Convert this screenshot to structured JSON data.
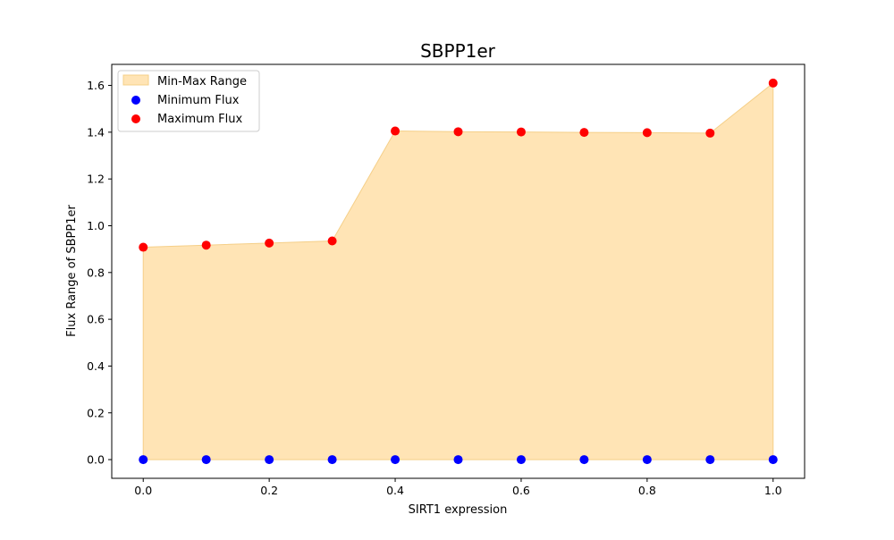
{
  "chart_data": {
    "type": "scatter",
    "title": "SBPP1er",
    "xlabel": "SIRT1 expression",
    "ylabel": "Flux Range of SBPP1er",
    "xlim": [
      -0.05,
      1.05
    ],
    "ylim": [
      -0.08,
      1.69
    ],
    "x_ticks": [
      "0.0",
      "0.2",
      "0.4",
      "0.6",
      "0.8",
      "1.0"
    ],
    "y_ticks": [
      "0.0",
      "0.2",
      "0.4",
      "0.6",
      "0.8",
      "1.0",
      "1.2",
      "1.4",
      "1.6"
    ],
    "x": [
      0.0,
      0.1,
      0.2,
      0.3,
      0.4,
      0.5,
      0.6,
      0.7,
      0.8,
      0.9,
      1.0
    ],
    "fill": {
      "name": "Min-Max Range",
      "color": "#FFE4B5",
      "edge_color": "#F5CF88"
    },
    "series": [
      {
        "name": "Minimum Flux",
        "color": "#0000FF",
        "values": [
          0.0,
          0.0,
          0.0,
          0.0,
          0.0,
          0.0,
          0.0,
          0.0,
          0.0,
          0.0,
          0.0
        ]
      },
      {
        "name": "Maximum Flux",
        "color": "#FF0000",
        "values": [
          0.908,
          0.917,
          0.926,
          0.935,
          1.405,
          1.402,
          1.401,
          1.399,
          1.398,
          1.396,
          1.61
        ]
      }
    ],
    "legend_position": "top-left",
    "grid": false
  }
}
